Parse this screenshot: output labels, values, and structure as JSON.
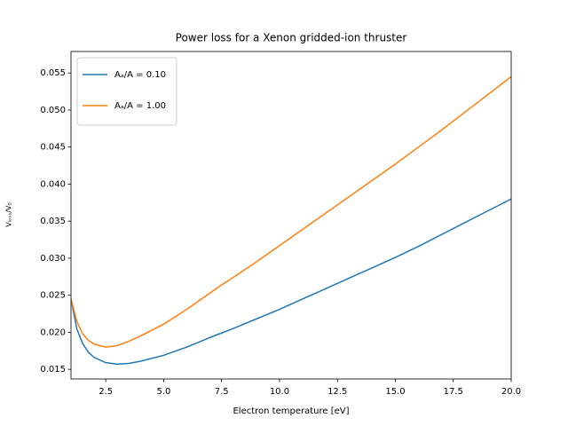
{
  "chart_data": {
    "type": "line",
    "title": "Power loss for a Xenon gridded-ion thruster",
    "x_label": "Electron temperature [eV]",
    "y_label": "Vₗₒₛₛ/V₀",
    "x": [
      1,
      1.25,
      1.5,
      1.75,
      2,
      2.5,
      3,
      3.5,
      4,
      5,
      6,
      7,
      7.5,
      8,
      9,
      10,
      11,
      12,
      12.5,
      13,
      14,
      15,
      16,
      17,
      17.5,
      18,
      19,
      20
    ],
    "series": [
      {
        "name": "Aₐ/A = 0.10",
        "color": "#1f77b4",
        "values": [
          0.0245,
          0.0205,
          0.0185,
          0.0173,
          0.0166,
          0.0159,
          0.0157,
          0.0158,
          0.0161,
          0.0169,
          0.018,
          0.0193,
          0.0199,
          0.0205,
          0.0218,
          0.0231,
          0.0245,
          0.0259,
          0.0266,
          0.0273,
          0.0287,
          0.0301,
          0.0316,
          0.0332,
          0.034,
          0.0348,
          0.0364,
          0.038
        ]
      },
      {
        "name": "Aₐ/A = 1.00",
        "color": "#ff7f0e",
        "values": [
          0.0245,
          0.0215,
          0.0198,
          0.0189,
          0.0184,
          0.018,
          0.0182,
          0.0188,
          0.0195,
          0.0211,
          0.0231,
          0.0253,
          0.0264,
          0.0274,
          0.0295,
          0.0317,
          0.0339,
          0.0361,
          0.0372,
          0.0383,
          0.0405,
          0.0427,
          0.045,
          0.0473,
          0.0485,
          0.0497,
          0.0521,
          0.0545
        ]
      }
    ],
    "xlim": [
      1,
      20
    ],
    "ylim": [
      0.0137,
      0.0579
    ],
    "xticks": [
      2.5,
      {
        "value": 5,
        "label": "5.0"
      },
      7.5,
      {
        "value": 10,
        "label": "10.0"
      },
      12.5,
      {
        "value": 15,
        "label": "15.0"
      },
      17.5,
      {
        "value": 20,
        "label": "20.0"
      }
    ],
    "yticks": [
      0.015,
      {
        "value": 0.02,
        "label": "0.020"
      },
      0.025,
      {
        "value": 0.03,
        "label": "0.030"
      },
      0.035,
      {
        "value": 0.04,
        "label": "0.040"
      },
      0.045,
      {
        "value": 0.05,
        "label": "0.050"
      },
      0.055
    ],
    "legend": "upper left",
    "grid": false
  }
}
